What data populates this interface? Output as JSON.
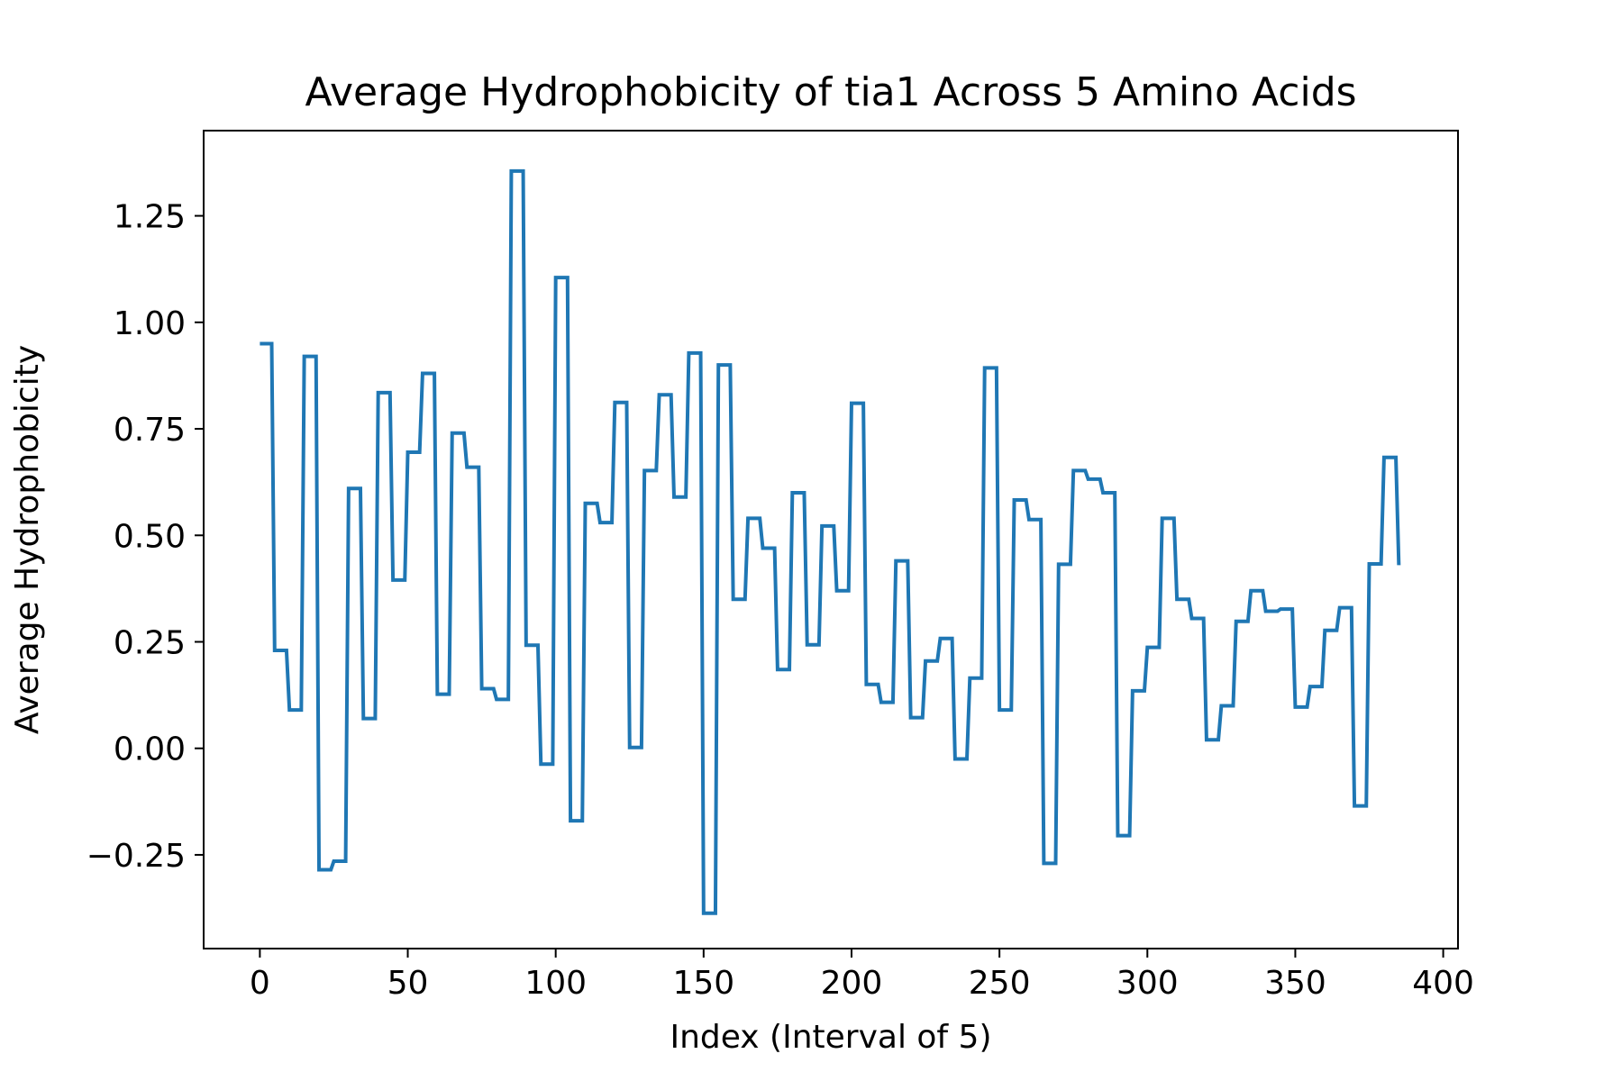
{
  "chart_data": {
    "type": "line",
    "title": "Average Hydrophobicity of tia1 Across 5 Amino Acids",
    "xlabel": "Index (Interval of 5)",
    "ylabel": "Average Hydrophobicity",
    "xlim": [
      -19,
      405
    ],
    "ylim": [
      -0.47,
      1.45
    ],
    "grid": false,
    "xticks": [
      0,
      50,
      100,
      150,
      200,
      250,
      300,
      350,
      400
    ],
    "xtick_labels": [
      "0",
      "50",
      "100",
      "150",
      "200",
      "250",
      "300",
      "350",
      "400"
    ],
    "yticks": [
      -0.25,
      0.0,
      0.25,
      0.5,
      0.75,
      1.0,
      1.25
    ],
    "ytick_labels": [
      "−0.25",
      "0.00",
      "0.25",
      "0.50",
      "0.75",
      "1.00",
      "1.25"
    ],
    "series": [
      {
        "name": "tia1",
        "color": "#1f77b4",
        "x": [
          0,
          1,
          2,
          3,
          4,
          5,
          6,
          7,
          8,
          9,
          10,
          11,
          12,
          13,
          14,
          15,
          16,
          17,
          18,
          19,
          20,
          21,
          22,
          23,
          24,
          25,
          26,
          27,
          28,
          29,
          30,
          31,
          32,
          33,
          34,
          35,
          36,
          37,
          38,
          39,
          40,
          41,
          42,
          43,
          44,
          45,
          46,
          47,
          48,
          49,
          50,
          51,
          52,
          53,
          54,
          55,
          56,
          57,
          58,
          59,
          60,
          61,
          62,
          63,
          64,
          65,
          66,
          67,
          68,
          69,
          70,
          71,
          72,
          73,
          74,
          75,
          76,
          77,
          78,
          79,
          80,
          81,
          82,
          83,
          84,
          85,
          86,
          87,
          88,
          89,
          90,
          91,
          92,
          93,
          94,
          95,
          96,
          97,
          98,
          99,
          100,
          101,
          102,
          103,
          104,
          105,
          106,
          107,
          108,
          109,
          110,
          111,
          112,
          113,
          114,
          115,
          116,
          117,
          118,
          119,
          120,
          121,
          122,
          123,
          124,
          125,
          126,
          127,
          128,
          129,
          130,
          131,
          132,
          133,
          134,
          135,
          136,
          137,
          138,
          139,
          140,
          141,
          142,
          143,
          144,
          145,
          146,
          147,
          148,
          149,
          150,
          151,
          152,
          153,
          154,
          155,
          156,
          157,
          158,
          159,
          160,
          161,
          162,
          163,
          164,
          165,
          166,
          167,
          168,
          169,
          170,
          171,
          172,
          173,
          174,
          175,
          176,
          177,
          178,
          179,
          180,
          181,
          182,
          183,
          184,
          185,
          186,
          187,
          188,
          189,
          190,
          191,
          192,
          193,
          194,
          195,
          196,
          197,
          198,
          199,
          200,
          201,
          202,
          203,
          204,
          205,
          206,
          207,
          208,
          209,
          210,
          211,
          212,
          213,
          214,
          215,
          216,
          217,
          218,
          219,
          220,
          221,
          222,
          223,
          224,
          225,
          226,
          227,
          228,
          229,
          230,
          231,
          232,
          233,
          234,
          235,
          236,
          237,
          238,
          239,
          240,
          241,
          242,
          243,
          244,
          245,
          246,
          247,
          248,
          249,
          250,
          251,
          252,
          253,
          254,
          255,
          256,
          257,
          258,
          259,
          260,
          261,
          262,
          263,
          264,
          265,
          266,
          267,
          268,
          269,
          270,
          271,
          272,
          273,
          274,
          275,
          276,
          277,
          278,
          279,
          280,
          281,
          282,
          283,
          284,
          285,
          286,
          287,
          288,
          289,
          290,
          291,
          292,
          293,
          294,
          295,
          296,
          297,
          298,
          299,
          300,
          301,
          302,
          303,
          304,
          305,
          306,
          307,
          308,
          309,
          310,
          311,
          312,
          313,
          314,
          315,
          316,
          317,
          318,
          319,
          320,
          321,
          322,
          323,
          324,
          325,
          326,
          327,
          328,
          329,
          330,
          331,
          332,
          333,
          334,
          335,
          336,
          337,
          338,
          339,
          340,
          341,
          342,
          343,
          344,
          345,
          346,
          347,
          348,
          349,
          350,
          351,
          352,
          353,
          354,
          355,
          356,
          357,
          358,
          359,
          360,
          361,
          362,
          363,
          364,
          365,
          366,
          367,
          368,
          369,
          370,
          371,
          372,
          373,
          374,
          375,
          376,
          377,
          378,
          379,
          380,
          381,
          382,
          383,
          384,
          385
        ],
        "y": [
          0.95,
          0.95,
          0.95,
          0.95,
          0.95,
          0.23,
          0.23,
          0.23,
          0.23,
          0.23,
          0.09,
          0.09,
          0.09,
          0.09,
          0.09,
          0.92,
          0.92,
          0.92,
          0.92,
          0.92,
          -0.285,
          -0.285,
          -0.285,
          -0.285,
          -0.285,
          -0.265,
          -0.265,
          -0.265,
          -0.265,
          -0.265,
          0.61,
          0.61,
          0.61,
          0.61,
          0.61,
          0.07,
          0.07,
          0.07,
          0.07,
          0.07,
          0.835,
          0.835,
          0.835,
          0.835,
          0.835,
          0.395,
          0.395,
          0.395,
          0.395,
          0.395,
          0.695,
          0.695,
          0.695,
          0.695,
          0.695,
          0.88,
          0.88,
          0.88,
          0.88,
          0.88,
          0.127,
          0.127,
          0.127,
          0.127,
          0.127,
          0.74,
          0.74,
          0.74,
          0.74,
          0.74,
          0.66,
          0.66,
          0.66,
          0.66,
          0.66,
          0.14,
          0.14,
          0.14,
          0.14,
          0.14,
          0.115,
          0.115,
          0.115,
          0.115,
          0.115,
          1.355,
          1.355,
          1.355,
          1.355,
          1.355,
          0.242,
          0.242,
          0.242,
          0.242,
          0.242,
          -0.037,
          -0.037,
          -0.037,
          -0.037,
          -0.037,
          1.105,
          1.105,
          1.105,
          1.105,
          1.105,
          -0.17,
          -0.17,
          -0.17,
          -0.17,
          -0.17,
          0.575,
          0.575,
          0.575,
          0.575,
          0.575,
          0.53,
          0.53,
          0.53,
          0.53,
          0.53,
          0.812,
          0.812,
          0.812,
          0.812,
          0.812,
          0.002,
          0.002,
          0.002,
          0.002,
          0.002,
          0.652,
          0.652,
          0.652,
          0.652,
          0.652,
          0.83,
          0.83,
          0.83,
          0.83,
          0.83,
          0.59,
          0.59,
          0.59,
          0.59,
          0.59,
          0.928,
          0.928,
          0.928,
          0.928,
          0.928,
          -0.387,
          -0.387,
          -0.387,
          -0.387,
          -0.387,
          0.9,
          0.9,
          0.9,
          0.9,
          0.9,
          0.35,
          0.35,
          0.35,
          0.35,
          0.35,
          0.54,
          0.54,
          0.54,
          0.54,
          0.54,
          0.47,
          0.47,
          0.47,
          0.47,
          0.47,
          0.185,
          0.185,
          0.185,
          0.185,
          0.185,
          0.6,
          0.6,
          0.6,
          0.6,
          0.6,
          0.243,
          0.243,
          0.243,
          0.243,
          0.243,
          0.522,
          0.522,
          0.522,
          0.522,
          0.522,
          0.37,
          0.37,
          0.37,
          0.37,
          0.37,
          0.81,
          0.81,
          0.81,
          0.81,
          0.81,
          0.15,
          0.15,
          0.15,
          0.15,
          0.15,
          0.108,
          0.108,
          0.108,
          0.108,
          0.108,
          0.44,
          0.44,
          0.44,
          0.44,
          0.44,
          0.072,
          0.072,
          0.072,
          0.072,
          0.072,
          0.205,
          0.205,
          0.205,
          0.205,
          0.205,
          0.258,
          0.258,
          0.258,
          0.258,
          0.258,
          -0.025,
          -0.025,
          -0.025,
          -0.025,
          -0.025,
          0.165,
          0.165,
          0.165,
          0.165,
          0.165,
          0.893,
          0.893,
          0.893,
          0.893,
          0.893,
          0.09,
          0.09,
          0.09,
          0.09,
          0.09,
          0.583,
          0.583,
          0.583,
          0.583,
          0.583,
          0.537,
          0.537,
          0.537,
          0.537,
          0.537,
          -0.27,
          -0.27,
          -0.27,
          -0.27,
          -0.27,
          0.432,
          0.432,
          0.432,
          0.432,
          0.432,
          0.652,
          0.652,
          0.652,
          0.652,
          0.652,
          0.632,
          0.632,
          0.632,
          0.632,
          0.632,
          0.6,
          0.6,
          0.6,
          0.6,
          0.6,
          -0.205,
          -0.205,
          -0.205,
          -0.205,
          -0.205,
          0.135,
          0.135,
          0.135,
          0.135,
          0.135,
          0.237,
          0.237,
          0.237,
          0.237,
          0.237,
          0.54,
          0.54,
          0.54,
          0.54,
          0.54,
          0.35,
          0.35,
          0.35,
          0.35,
          0.35,
          0.305,
          0.305,
          0.305,
          0.305,
          0.305,
          0.02,
          0.02,
          0.02,
          0.02,
          0.02,
          0.1,
          0.1,
          0.1,
          0.1,
          0.1,
          0.298,
          0.298,
          0.298,
          0.298,
          0.298,
          0.37,
          0.37,
          0.37,
          0.37,
          0.37,
          0.322,
          0.322,
          0.322,
          0.322,
          0.322,
          0.327,
          0.327,
          0.327,
          0.327,
          0.327,
          0.097,
          0.097,
          0.097,
          0.097,
          0.097,
          0.145,
          0.145,
          0.145,
          0.145,
          0.145,
          0.277,
          0.277,
          0.277,
          0.277,
          0.277,
          0.33,
          0.33,
          0.33,
          0.33,
          0.33,
          -0.135,
          -0.135,
          -0.135,
          -0.135,
          -0.135,
          0.433,
          0.433,
          0.433,
          0.433,
          0.433,
          0.683,
          0.683,
          0.683,
          0.683,
          0.683,
          0.43
        ]
      }
    ]
  }
}
